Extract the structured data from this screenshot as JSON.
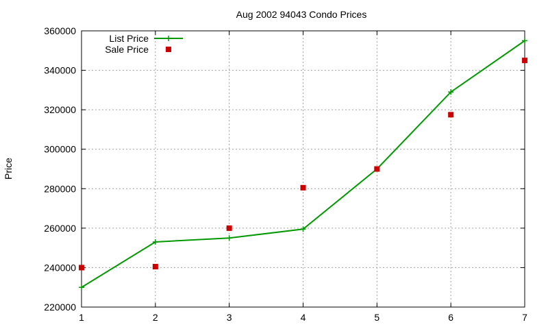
{
  "chart_data": {
    "type": "line",
    "title": "Aug 2002 94043 Condo Prices",
    "xlabel": "",
    "ylabel": "Price",
    "xlim": [
      1,
      7
    ],
    "ylim": [
      220000,
      360000
    ],
    "x_ticks": [
      "1",
      "2",
      "3",
      "4",
      "5",
      "6",
      "7"
    ],
    "y_ticks": [
      "220000",
      "240000",
      "260000",
      "280000",
      "300000",
      "320000",
      "340000",
      "360000"
    ],
    "grid": true,
    "legend_position": "top-left",
    "series": [
      {
        "name": "List Price",
        "style": "lines+points",
        "marker": "plus",
        "color": "#009900",
        "x": [
          1,
          2,
          3,
          4,
          5,
          6,
          7
        ],
        "y": [
          230000,
          253000,
          255000,
          259500,
          290000,
          329000,
          355000
        ]
      },
      {
        "name": "Sale Price",
        "style": "points",
        "marker": "square",
        "color": "#cc0000",
        "x": [
          1,
          2,
          3,
          4,
          5,
          6,
          7
        ],
        "y": [
          240000,
          240500,
          260000,
          280500,
          290000,
          317500,
          345000
        ]
      }
    ]
  }
}
